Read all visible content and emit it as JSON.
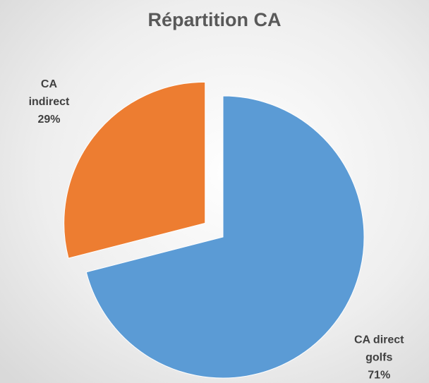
{
  "chart_data": {
    "type": "pie",
    "title": "Répartition CA",
    "categories": [
      "CA direct golfs",
      "CA indirect"
    ],
    "values": [
      71,
      29
    ],
    "value_labels": [
      "71%",
      "29%"
    ],
    "colors": [
      "#5b9bd5",
      "#ed7d31"
    ]
  }
}
